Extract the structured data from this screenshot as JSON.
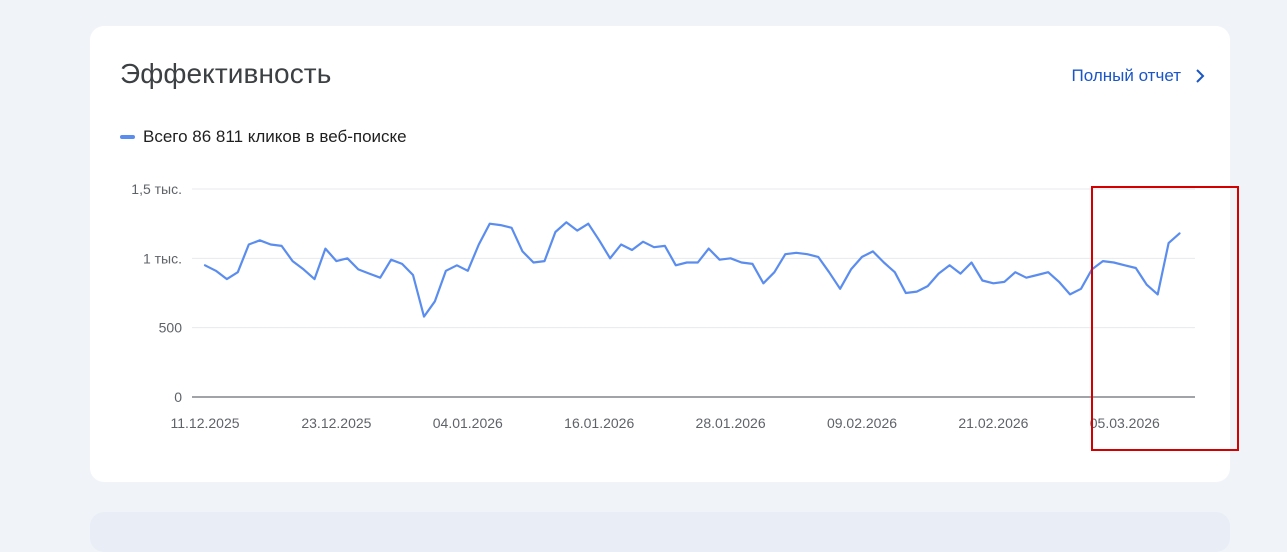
{
  "card": {
    "title": "Эффективность",
    "full_report_label": "Полный отчет",
    "full_report_icon": "chevron-right-icon"
  },
  "legend": {
    "label": "Всего 86 811 кликов в веб-поиске",
    "color": "#5b8def"
  },
  "colors": {
    "line": "#5b8def",
    "highlight": "#d40000",
    "link": "#1a56c8"
  },
  "chart_data": {
    "type": "line",
    "title": "",
    "xlabel": "",
    "ylabel": "",
    "ylim": [
      0,
      1500
    ],
    "y_ticks": [
      {
        "value": 0,
        "label": "0"
      },
      {
        "value": 500,
        "label": "500"
      },
      {
        "value": 1000,
        "label": "1 тыс."
      },
      {
        "value": 1500,
        "label": "1,5 тыс."
      }
    ],
    "x_ticks": [
      {
        "date": "2025-12-11",
        "label": "11.12.2025"
      },
      {
        "date": "2025-12-23",
        "label": "23.12.2025"
      },
      {
        "date": "2026-01-04",
        "label": "04.01.2026"
      },
      {
        "date": "2026-01-16",
        "label": "16.01.2026"
      },
      {
        "date": "2026-01-28",
        "label": "28.01.2026"
      },
      {
        "date": "2026-02-09",
        "label": "09.02.2026"
      },
      {
        "date": "2026-02-21",
        "label": "21.02.2026"
      },
      {
        "date": "2026-03-05",
        "label": "05.03.2026"
      }
    ],
    "grid": true,
    "series": [
      {
        "name": "",
        "x": [
          "2025-12-11",
          "2025-12-12",
          "2025-12-13",
          "2025-12-14",
          "2025-12-15",
          "2025-12-16",
          "2025-12-17",
          "2025-12-18",
          "2025-12-19",
          "2025-12-20",
          "2025-12-21",
          "2025-12-22",
          "2025-12-23",
          "2025-12-24",
          "2025-12-25",
          "2025-12-26",
          "2025-12-27",
          "2025-12-28",
          "2025-12-29",
          "2025-12-30",
          "2025-12-31",
          "2026-01-01",
          "2026-01-02",
          "2026-01-03",
          "2026-01-04",
          "2026-01-05",
          "2026-01-06",
          "2026-01-07",
          "2026-01-08",
          "2026-01-09",
          "2026-01-10",
          "2026-01-11",
          "2026-01-12",
          "2026-01-13",
          "2026-01-14",
          "2026-01-15",
          "2026-01-16",
          "2026-01-17",
          "2026-01-18",
          "2026-01-19",
          "2026-01-20",
          "2026-01-21",
          "2026-01-22",
          "2026-01-23",
          "2026-01-24",
          "2026-01-25",
          "2026-01-26",
          "2026-01-27",
          "2026-01-28",
          "2026-01-29",
          "2026-01-30",
          "2026-01-31",
          "2026-02-01",
          "2026-02-02",
          "2026-02-03",
          "2026-02-04",
          "2026-02-05",
          "2026-02-06",
          "2026-02-07",
          "2026-02-08",
          "2026-02-09",
          "2026-02-10",
          "2026-02-11",
          "2026-02-12",
          "2026-02-13",
          "2026-02-14",
          "2026-02-15",
          "2026-02-16",
          "2026-02-17",
          "2026-02-18",
          "2026-02-19",
          "2026-02-20",
          "2026-02-21",
          "2026-02-22",
          "2026-02-23",
          "2026-02-24",
          "2026-02-25",
          "2026-02-26",
          "2026-02-27",
          "2026-02-28",
          "2026-03-01",
          "2026-03-02",
          "2026-03-03",
          "2026-03-04",
          "2026-03-05",
          "2026-03-06",
          "2026-03-07",
          "2026-03-08",
          "2026-03-09",
          "2026-03-10"
        ],
        "values": [
          950,
          910,
          850,
          900,
          1100,
          1130,
          1100,
          1090,
          980,
          920,
          850,
          1070,
          980,
          1000,
          920,
          890,
          860,
          990,
          960,
          880,
          580,
          690,
          910,
          950,
          910,
          1100,
          1250,
          1240,
          1220,
          1050,
          970,
          980,
          1190,
          1260,
          1200,
          1250,
          1130,
          1000,
          1100,
          1060,
          1120,
          1080,
          1090,
          950,
          970,
          970,
          1070,
          990,
          1000,
          970,
          960,
          820,
          900,
          1030,
          1040,
          1030,
          1010,
          900,
          780,
          920,
          1010,
          1050,
          970,
          900,
          750,
          760,
          800,
          890,
          950,
          890,
          970,
          840,
          820,
          830,
          900,
          860,
          880,
          900,
          830,
          740,
          780,
          920,
          980,
          970,
          950,
          930,
          810,
          740,
          1110,
          1180
        ]
      }
    ]
  }
}
